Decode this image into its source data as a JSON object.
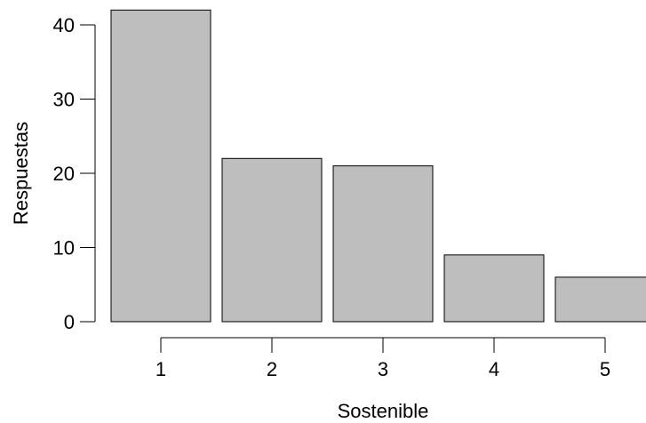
{
  "chart_data": {
    "type": "bar",
    "categories": [
      "1",
      "2",
      "3",
      "4",
      "5"
    ],
    "values": [
      42,
      22,
      21,
      9,
      6
    ],
    "title": "",
    "xlabel": "Sostenible",
    "ylabel": "Respuestas",
    "ylim": [
      0,
      40
    ],
    "yticks": [
      "0",
      "10",
      "20",
      "30",
      "40"
    ],
    "grid": false,
    "legend": "none",
    "colors": {
      "bar_fill": "#bebebe",
      "bar_stroke": "#000000",
      "axis": "#000000",
      "text": "#000000"
    }
  }
}
